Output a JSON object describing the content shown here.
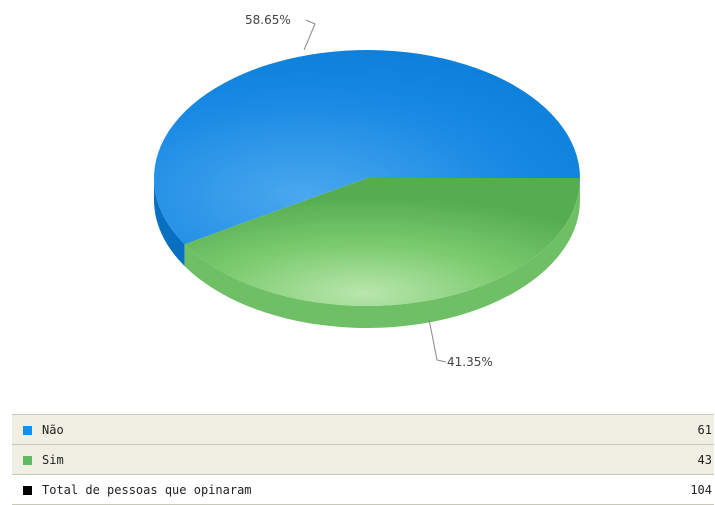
{
  "chart_data": {
    "type": "pie",
    "categories": [
      "Não",
      "Sim"
    ],
    "values": [
      61,
      43
    ],
    "percent_labels": [
      "58.65%",
      "41.35%"
    ],
    "colors": [
      "#0f85e0",
      "#5cb85c"
    ],
    "style": "3d-ellipse",
    "legend": {
      "placement": "bottom-table",
      "rows": [
        {
          "label": "Não",
          "value": "61",
          "color": "#1a8ee6"
        },
        {
          "label": "Sim",
          "value": "43",
          "color": "#63b863"
        },
        {
          "label": "Total de pessoas que opinaram",
          "value": "104",
          "color": "#000000"
        }
      ]
    }
  }
}
